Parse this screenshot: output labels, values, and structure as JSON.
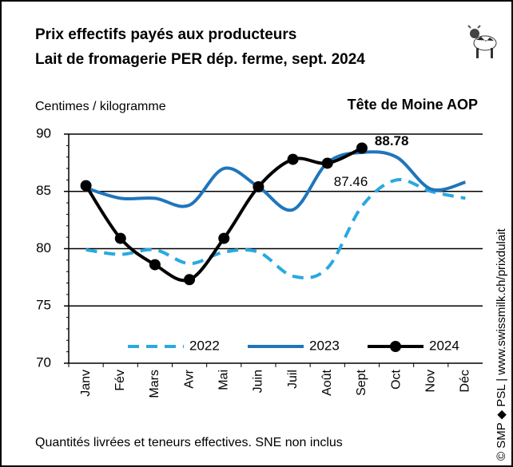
{
  "chart_data": {
    "type": "line",
    "title": "Prix effectifs payés aux producteurs",
    "subtitle": "Lait de fromagerie PER dép. ferme, sept. 2024",
    "product": "Tête de Moine AOP",
    "y_label": "Centimes / kilogramme",
    "footnote": "Quantités livrées et teneurs effectives. SNE non inclus",
    "source": "© SMP ◆ PSL | www.swissmilk.ch/prixdulait",
    "categories": [
      "Janv",
      "Fév",
      "Mars",
      "Avr",
      "Mai",
      "Juin",
      "Juil",
      "Août",
      "Sept",
      "Oct",
      "Nov",
      "Déc"
    ],
    "series": [
      {
        "name": "2022",
        "color": "#29a9e0",
        "dashed": true,
        "markers": false,
        "values": [
          79.9,
          79.5,
          79.9,
          78.7,
          79.7,
          79.7,
          77.6,
          78.3,
          83.7,
          86.0,
          85.0,
          84.4
        ]
      },
      {
        "name": "2023",
        "color": "#1f75bc",
        "dashed": false,
        "markers": false,
        "values": [
          85.3,
          84.4,
          84.4,
          83.8,
          87.0,
          85.4,
          83.4,
          87.5,
          88.4,
          88.0,
          85.2,
          85.8
        ]
      },
      {
        "name": "2024",
        "color": "#000000",
        "dashed": false,
        "markers": true,
        "values": [
          85.5,
          80.9,
          78.6,
          77.3,
          80.9,
          85.4,
          87.8,
          87.46,
          88.78,
          null,
          null,
          null
        ]
      }
    ],
    "ylim": [
      70,
      90
    ],
    "yticks": [
      70,
      75,
      80,
      85,
      90
    ],
    "grid": true,
    "legend": "lower center"
  }
}
